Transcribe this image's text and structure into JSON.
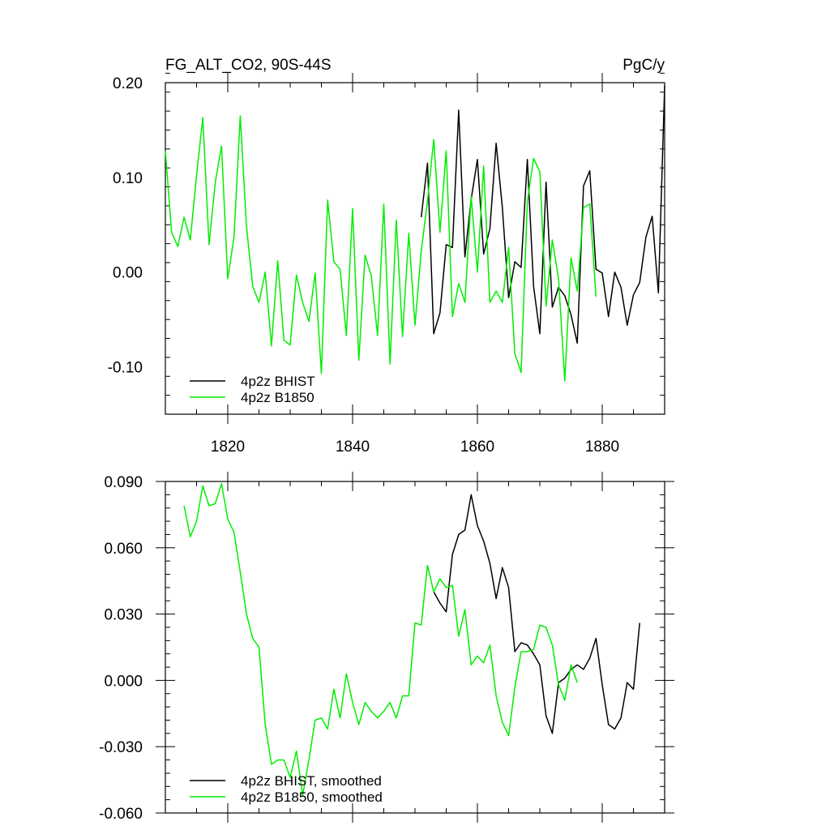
{
  "figure": {
    "title": "FG_ALT_CO2, 90S-44S",
    "units": "PgC/y"
  },
  "chart_data": [
    {
      "type": "line",
      "title": "FG_ALT_CO2, 90S-44S",
      "units": "PgC/y",
      "xlim": [
        1810,
        1890
      ],
      "ylim": [
        -0.15,
        0.2
      ],
      "xticks": [
        1820,
        1840,
        1860,
        1880
      ],
      "xtick_labels": [
        "1820",
        "1840",
        "1860",
        "1880"
      ],
      "yticks": [
        -0.1,
        0.0,
        0.1,
        0.2
      ],
      "ytick_labels": [
        "-0.10",
        "0.00",
        "0.10",
        "0.20"
      ],
      "legend_position": "bottom-left",
      "series": [
        {
          "name": "4p2z BHIST",
          "color": "#000000",
          "x_start": 1851,
          "values": [
            0.058,
            0.115,
            -0.065,
            -0.043,
            0.029,
            0.026,
            0.171,
            0.016,
            0.077,
            0.119,
            0.019,
            0.046,
            0.136,
            0.068,
            -0.027,
            0.011,
            0.005,
            0.119,
            -0.015,
            -0.065,
            0.095,
            -0.037,
            -0.016,
            -0.025,
            -0.045,
            -0.075,
            0.091,
            0.107,
            0.003,
            -0.001,
            -0.047,
            0.0,
            -0.016,
            -0.056,
            -0.024,
            -0.011,
            0.037,
            0.059,
            -0.022,
            0.197
          ]
        },
        {
          "name": "4p2z B1850",
          "color": "#00ee00",
          "x_start": 1810,
          "values": [
            0.128,
            0.042,
            0.027,
            0.058,
            0.034,
            0.102,
            0.163,
            0.029,
            0.095,
            0.133,
            -0.007,
            0.037,
            0.165,
            0.048,
            -0.015,
            -0.032,
            0.0,
            -0.078,
            0.012,
            -0.072,
            -0.077,
            -0.003,
            -0.032,
            -0.052,
            -0.001,
            -0.107,
            0.076,
            0.011,
            0.003,
            -0.067,
            0.067,
            -0.093,
            0.018,
            -0.004,
            -0.067,
            0.072,
            -0.097,
            0.055,
            -0.068,
            0.041,
            -0.056,
            0.022,
            0.075,
            0.14,
            0.042,
            0.128,
            -0.047,
            -0.012,
            -0.032,
            0.08,
            0.0,
            0.112,
            -0.032,
            -0.02,
            -0.032,
            0.026,
            -0.086,
            -0.106,
            0.074,
            0.12,
            0.106,
            -0.036,
            0.034,
            -0.007,
            -0.115,
            0.015,
            -0.02,
            0.068,
            0.072,
            -0.026
          ]
        }
      ]
    },
    {
      "type": "line",
      "xlim": [
        1810,
        1890
      ],
      "ylim": [
        -0.06,
        0.09
      ],
      "xticks": [
        1820,
        1840,
        1860,
        1880
      ],
      "yticks": [
        -0.06,
        -0.03,
        0.0,
        0.03,
        0.06,
        0.09
      ],
      "ytick_labels": [
        "-0.060",
        "-0.030",
        "0.000",
        "0.030",
        "0.060",
        "0.090"
      ],
      "legend_position": "bottom-left",
      "series": [
        {
          "name": "4p2z BHIST, smoothed",
          "color": "#000000",
          "x_start": 1853,
          "values": [
            0.04,
            0.035,
            0.031,
            0.057,
            0.066,
            0.068,
            0.084,
            0.07,
            0.063,
            0.053,
            0.037,
            0.051,
            0.042,
            0.013,
            0.017,
            0.016,
            0.012,
            0.007,
            -0.016,
            -0.024,
            -0.001,
            0.001,
            0.005,
            0.007,
            0.005,
            0.01,
            0.019,
            -0.002,
            -0.02,
            -0.022,
            -0.017,
            -0.001,
            -0.004,
            0.026
          ]
        },
        {
          "name": "4p2z B1850, smoothed",
          "color": "#00ee00",
          "x_start": 1813,
          "values": [
            0.079,
            0.065,
            0.072,
            0.088,
            0.079,
            0.08,
            0.089,
            0.073,
            0.067,
            0.049,
            0.03,
            0.019,
            0.015,
            -0.02,
            -0.038,
            -0.036,
            -0.036,
            -0.044,
            -0.032,
            -0.052,
            -0.036,
            -0.018,
            -0.017,
            -0.022,
            -0.004,
            -0.017,
            0.003,
            -0.01,
            -0.02,
            -0.01,
            -0.014,
            -0.017,
            -0.014,
            -0.01,
            -0.017,
            -0.007,
            -0.007,
            0.026,
            0.025,
            0.052,
            0.04,
            0.046,
            0.042,
            0.043,
            0.02,
            0.032,
            0.007,
            0.011,
            0.008,
            0.016,
            -0.007,
            -0.019,
            -0.025,
            -0.003,
            0.013,
            0.013,
            0.014,
            0.025,
            0.024,
            0.016,
            -0.002,
            -0.009,
            0.007,
            -0.001
          ]
        }
      ]
    }
  ]
}
